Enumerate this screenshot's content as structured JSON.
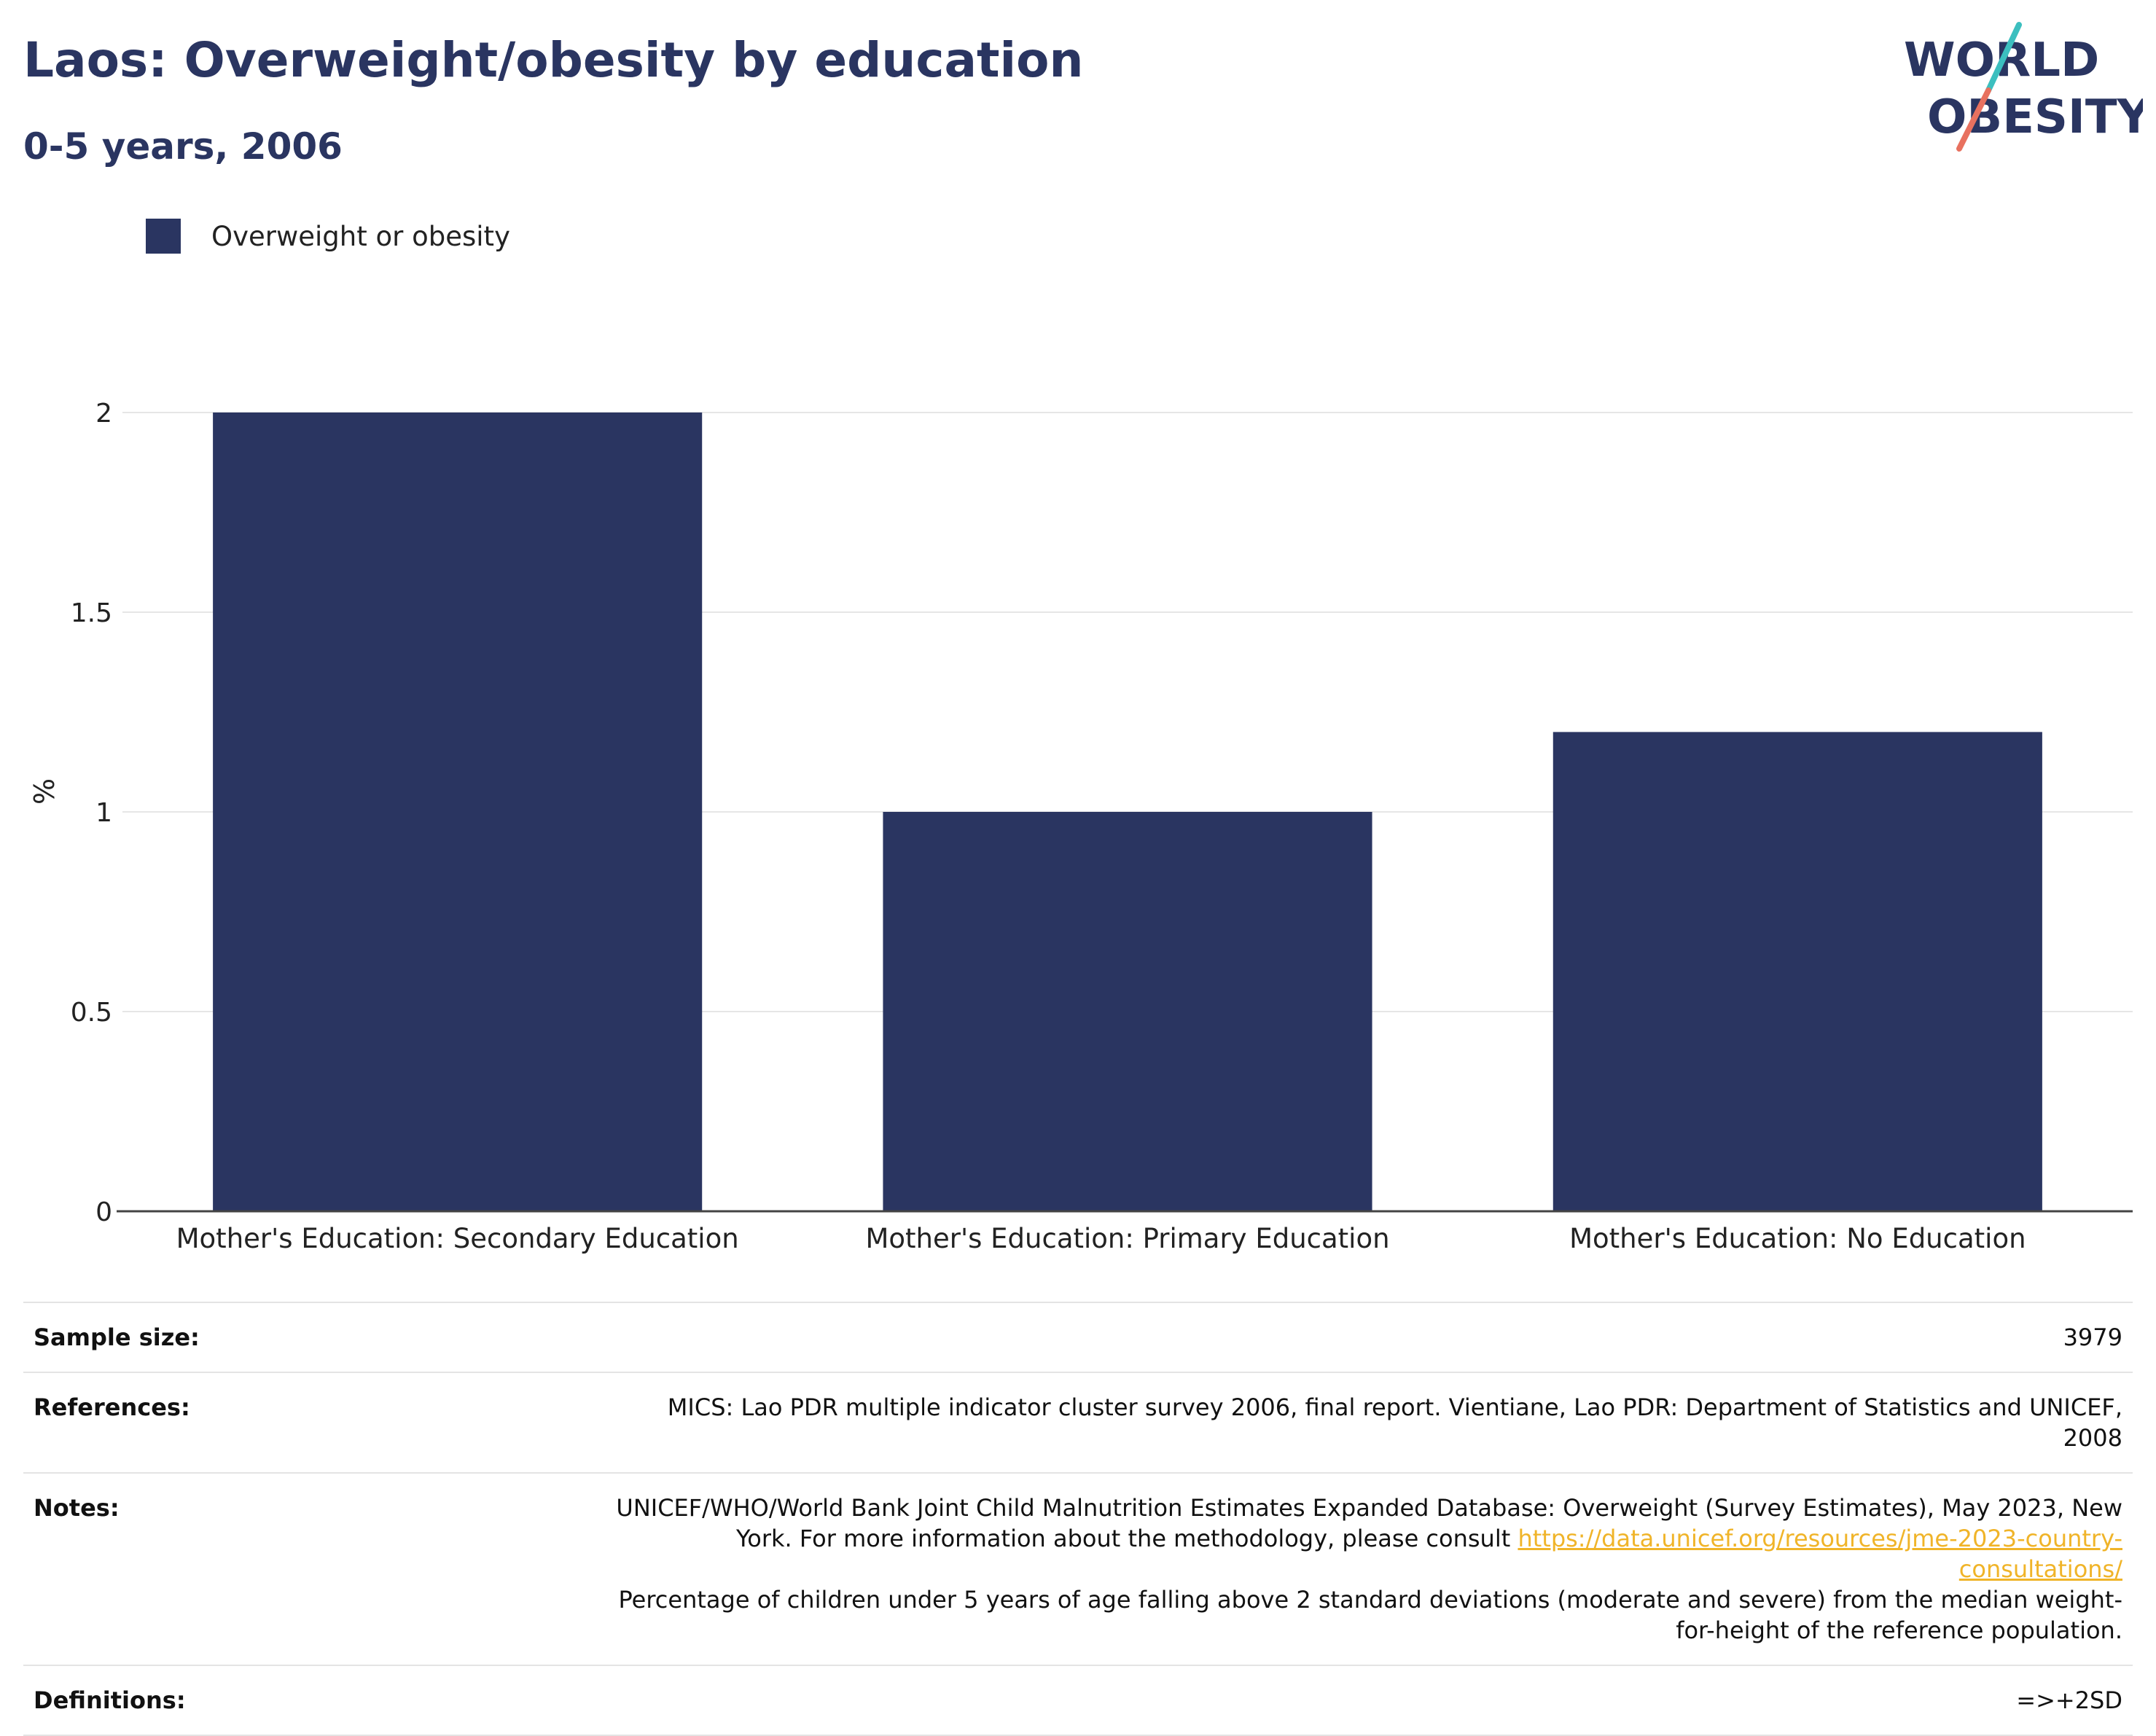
{
  "header": {
    "title": "Laos: Overweight/obesity by education",
    "subtitle": "0-5 years, 2006"
  },
  "logo": {
    "line1": "WORLD",
    "line2": "OBESITY",
    "colors": {
      "text": "#2a3561",
      "slash_top": "#3cbfbf",
      "slash_bottom": "#e8715f"
    }
  },
  "legend": {
    "label": "Overweight or obesity",
    "color": "#2a3561"
  },
  "chart_data": {
    "type": "bar",
    "categories": [
      "Mother's Education: Secondary Education",
      "Mother's Education: Primary Education",
      "Mother's Education: No Education"
    ],
    "series": [
      {
        "name": "Overweight or obesity",
        "values": [
          2.0,
          1.0,
          1.2
        ],
        "color": "#2a3561"
      }
    ],
    "ylabel": "%",
    "ylim": [
      0,
      2
    ],
    "yticks": [
      0,
      0.5,
      1,
      1.5,
      2
    ],
    "ytick_labels": [
      "0",
      "0.5",
      "1",
      "1.5",
      "2"
    ],
    "grid": true,
    "legend_position": "top-left"
  },
  "info": {
    "sample_size_label": "Sample size:",
    "sample_size_value": "3979",
    "references_label": "References:",
    "references_value": "MICS: Lao PDR multiple indicator cluster survey 2006, final report. Vientiane, Lao PDR: Department of Statistics and UNICEF, 2008",
    "notes_label": "Notes:",
    "notes_value_pre": "UNICEF/WHO/World Bank Joint Child Malnutrition Estimates Expanded Database: Overweight (Survey Estimates), May 2023, New York. For more information about the methodology, please consult ",
    "notes_link": "https://data.unicef.org/resources/jme-2023-country-consultations/",
    "notes_value_post": "Percentage of children under 5 years of age falling above 2 standard deviations (moderate and severe) from the median weight-for-height of the reference population.",
    "definitions_label": "Definitions:",
    "definitions_value": "=>+2SD"
  }
}
